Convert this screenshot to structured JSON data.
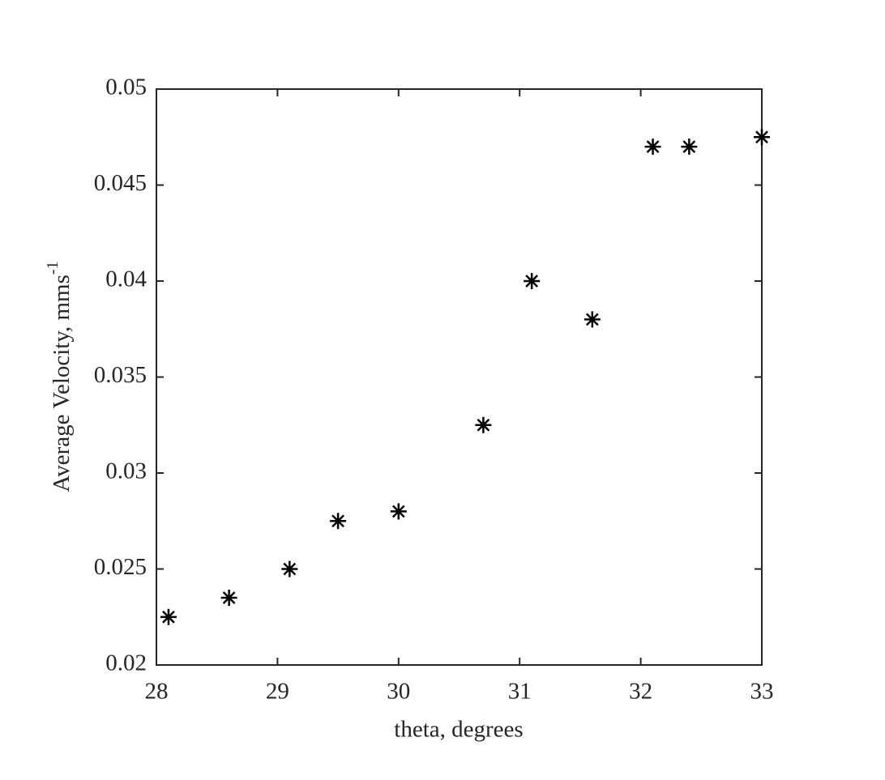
{
  "chart_data": {
    "type": "scatter",
    "x_label": "theta, degrees",
    "y_label": {
      "text": "Average Velocity, mms",
      "superscript": "-1"
    },
    "x": [
      28.1,
      28.6,
      29.1,
      29.5,
      30.0,
      30.7,
      31.1,
      31.6,
      32.1,
      32.4,
      33.0
    ],
    "values": [
      0.0225,
      0.0235,
      0.025,
      0.0275,
      0.028,
      0.0325,
      0.04,
      0.038,
      0.047,
      0.047,
      0.0475
    ],
    "color": "#000000",
    "marker": "asterisk",
    "xlim": [
      28,
      33
    ],
    "xticks": [
      28,
      29,
      30,
      31,
      32,
      33
    ],
    "ylim": [
      0.02,
      0.05
    ],
    "yticks": [
      0.02,
      0.025,
      0.03,
      0.035,
      0.04,
      0.045,
      0.05
    ],
    "grid": false
  }
}
